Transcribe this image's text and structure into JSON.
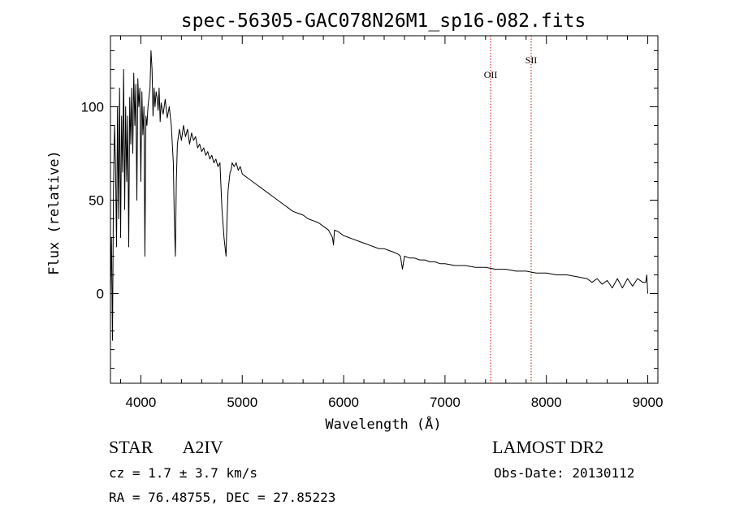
{
  "chart_data": {
    "type": "line",
    "title": "spec-56305-GAC078N26M1_sp16-082.fits",
    "xlabel": "Wavelength (Å)",
    "ylabel": "Flux (relative)",
    "xlim": [
      3700,
      9100
    ],
    "ylim": [
      -48,
      138
    ],
    "xticks": [
      4000,
      5000,
      6000,
      7000,
      8000,
      9000
    ],
    "xtick_labels": [
      "4000",
      "5000",
      "6000",
      "7000",
      "8000",
      "9000"
    ],
    "yticks": [
      0,
      50,
      100
    ],
    "ytick_labels": [
      "0",
      "50",
      "100"
    ],
    "grid": false,
    "series": [
      {
        "x": [
          3700,
          3710,
          3720,
          3730,
          3740,
          3750,
          3760,
          3770,
          3780,
          3790,
          3800,
          3810,
          3820,
          3830,
          3840,
          3850,
          3860,
          3870,
          3880,
          3890,
          3900,
          3910,
          3920,
          3930,
          3940,
          3950,
          3960,
          3970,
          3980,
          3990,
          4000,
          4010,
          4020,
          4030,
          4040,
          4050,
          4060,
          4070,
          4080,
          4090,
          4100,
          4110,
          4120,
          4130,
          4140,
          4150,
          4160,
          4170,
          4180,
          4190,
          4200,
          4220,
          4240,
          4260,
          4280,
          4300,
          4320,
          4330,
          4340,
          4350,
          4360,
          4380,
          4400,
          4420,
          4440,
          4460,
          4480,
          4500,
          4520,
          4540,
          4560,
          4580,
          4600,
          4620,
          4640,
          4660,
          4680,
          4700,
          4720,
          4740,
          4760,
          4780,
          4800,
          4820,
          4840,
          4850,
          4860,
          4870,
          4880,
          4890,
          4900,
          4920,
          4940,
          4960,
          4980,
          5000,
          5050,
          5100,
          5150,
          5200,
          5250,
          5300,
          5350,
          5400,
          5450,
          5500,
          5550,
          5600,
          5650,
          5700,
          5750,
          5800,
          5850,
          5890,
          5900,
          5910,
          5950,
          6000,
          6050,
          6100,
          6150,
          6200,
          6250,
          6300,
          6350,
          6400,
          6450,
          6500,
          6540,
          6560,
          6580,
          6600,
          6650,
          6700,
          6750,
          6800,
          6850,
          6900,
          6950,
          7000,
          7100,
          7200,
          7300,
          7400,
          7500,
          7600,
          7700,
          7800,
          7900,
          8000,
          8100,
          8200,
          8300,
          8400,
          8450,
          8500,
          8550,
          8600,
          8650,
          8700,
          8750,
          8800,
          8850,
          8900,
          8950,
          8980,
          8990,
          9000
        ],
        "y": [
          0,
          30,
          -25,
          55,
          90,
          70,
          25,
          100,
          40,
          110,
          30,
          95,
          65,
          120,
          45,
          100,
          60,
          95,
          25,
          105,
          80,
          110,
          75,
          118,
          90,
          112,
          50,
          115,
          100,
          110,
          60,
          108,
          85,
          100,
          20,
          95,
          90,
          100,
          105,
          110,
          130,
          120,
          95,
          110,
          100,
          108,
          105,
          98,
          110,
          92,
          102,
          96,
          104,
          94,
          100,
          90,
          70,
          40,
          20,
          60,
          80,
          88,
          82,
          90,
          84,
          88,
          80,
          86,
          82,
          84,
          78,
          80,
          76,
          78,
          74,
          76,
          72,
          74,
          70,
          72,
          68,
          70,
          45,
          30,
          20,
          40,
          55,
          60,
          65,
          66,
          70,
          68,
          70,
          66,
          68,
          64,
          62,
          60,
          58,
          56,
          54,
          52,
          50,
          48,
          46,
          44,
          43,
          42,
          40,
          39,
          38,
          36,
          34,
          30,
          26,
          34,
          33,
          31,
          30,
          29,
          28,
          27,
          26,
          25,
          24,
          24,
          23,
          22,
          21,
          20,
          13,
          20,
          19,
          19,
          18,
          18,
          17,
          17,
          16,
          16,
          15,
          15,
          14,
          14,
          13,
          13,
          12,
          12,
          11,
          11,
          10,
          10,
          9,
          8,
          6,
          8,
          5,
          7,
          3,
          8,
          3,
          8,
          4,
          8,
          6,
          6,
          10,
          0
        ]
      }
    ],
    "annotations": [
      {
        "label": "OII",
        "x": 7450
      },
      {
        "label": "SII",
        "x": 7850
      }
    ],
    "colors": {
      "spectrum": "#000000",
      "lines": "#cc0000",
      "axes": "#000000",
      "background": "#ffffff"
    }
  },
  "info": {
    "left1_class": "STAR",
    "left1_subclass": "A2IV",
    "right1": "LAMOST DR2",
    "left2": "cz = 1.7 ± 3.7 km/s",
    "right2": "Obs-Date: 20130112",
    "left3": "RA =  76.48755, DEC =  27.85223"
  }
}
